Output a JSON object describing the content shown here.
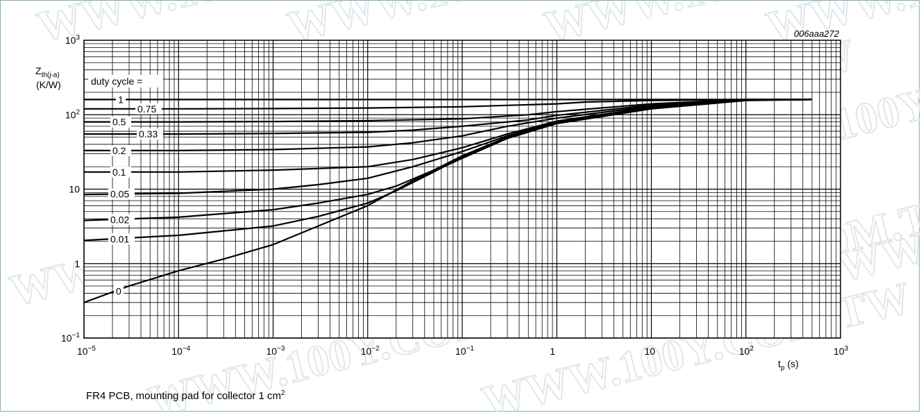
{
  "figure": {
    "id_label": "006aaa272",
    "caption": "FR4 PCB, mounting pad for collector 1 cm",
    "caption_sup": "2",
    "watermark": "WWW.100Y.COM.TW",
    "border_color": "#7fb0b6"
  },
  "chart_data": {
    "type": "line",
    "x_scale": "log",
    "y_scale": "log",
    "xlim": [
      1e-05,
      1000
    ],
    "ylim": [
      0.1,
      1000
    ],
    "grid": true,
    "ylabel": {
      "main": "Z",
      "sub": "th(j-a)",
      "unit": "(K/W)"
    },
    "xlabel": {
      "main": "t",
      "sub": "p",
      "unit": "(s)"
    },
    "x_tick_labels": [
      {
        "base": "10",
        "exp": "−5"
      },
      {
        "base": "10",
        "exp": "−4"
      },
      {
        "base": "10",
        "exp": "−3"
      },
      {
        "base": "10",
        "exp": "−2"
      },
      {
        "base": "10",
        "exp": "−1"
      },
      {
        "base": "1",
        "exp": ""
      },
      {
        "base": "10",
        "exp": ""
      },
      {
        "base": "10",
        "exp": "2"
      },
      {
        "base": "10",
        "exp": "3"
      }
    ],
    "y_tick_labels": [
      {
        "base": "10",
        "exp": "−1"
      },
      {
        "base": "1",
        "exp": ""
      },
      {
        "base": "10",
        "exp": ""
      },
      {
        "base": "10",
        "exp": "2"
      },
      {
        "base": "10",
        "exp": "3"
      }
    ],
    "legend_title": "duty cycle =",
    "series": [
      {
        "name": "1",
        "x": [
          1e-05,
          0.0001,
          0.001,
          0.01,
          0.1,
          1,
          10,
          100,
          500
        ],
        "y": [
          160,
          160,
          160,
          160,
          160,
          160,
          160,
          160,
          160
        ]
      },
      {
        "name": "0.75",
        "x": [
          1e-05,
          0.0001,
          0.001,
          0.01,
          0.1,
          1,
          2,
          10,
          100,
          500
        ],
        "y": [
          120,
          120,
          121,
          123,
          128,
          140,
          148,
          155,
          160,
          160
        ]
      },
      {
        "name": "0.5",
        "x": [
          1e-05,
          0.0001,
          0.001,
          0.01,
          0.1,
          0.5,
          1,
          10,
          100,
          500
        ],
        "y": [
          80,
          80,
          81,
          83,
          88,
          100,
          110,
          140,
          160,
          160
        ]
      },
      {
        "name": "0.33",
        "x": [
          1e-05,
          0.0001,
          0.001,
          0.01,
          0.03,
          0.1,
          0.5,
          1,
          10,
          100,
          500
        ],
        "y": [
          55,
          55,
          56,
          58,
          62,
          70,
          85,
          98,
          135,
          160,
          160
        ]
      },
      {
        "name": "0.2",
        "x": [
          1e-05,
          0.0001,
          0.001,
          0.01,
          0.03,
          0.1,
          0.3,
          1,
          10,
          100,
          500
        ],
        "y": [
          33,
          33,
          34,
          37,
          42,
          52,
          70,
          90,
          130,
          158,
          160
        ]
      },
      {
        "name": "0.1",
        "x": [
          1e-05,
          0.0001,
          0.001,
          0.01,
          0.03,
          0.1,
          0.3,
          1,
          10,
          100,
          500
        ],
        "y": [
          17,
          17,
          18,
          20,
          25,
          36,
          55,
          82,
          126,
          157,
          160
        ]
      },
      {
        "name": "0.05",
        "x": [
          1e-05,
          0.0001,
          0.001,
          0.003,
          0.01,
          0.03,
          0.1,
          0.3,
          1,
          10,
          100,
          500
        ],
        "y": [
          8.5,
          8.8,
          10,
          11.5,
          14,
          20,
          32,
          52,
          80,
          125,
          157,
          160
        ]
      },
      {
        "name": "0.02",
        "x": [
          1e-05,
          0.0001,
          0.001,
          0.003,
          0.01,
          0.02,
          0.05,
          0.1,
          0.3,
          1,
          10,
          100,
          500
        ],
        "y": [
          3.8,
          4.2,
          5.3,
          6.5,
          8.5,
          11,
          18,
          28,
          50,
          78,
          123,
          157,
          160
        ]
      },
      {
        "name": "0.01",
        "x": [
          1e-05,
          0.0001,
          0.001,
          0.003,
          0.01,
          0.02,
          0.05,
          0.1,
          0.3,
          1,
          10,
          100,
          500
        ],
        "y": [
          2.05,
          2.4,
          3.2,
          4.3,
          6.5,
          9.5,
          17,
          27,
          50,
          78,
          122,
          157,
          160
        ]
      },
      {
        "name": "0",
        "x": [
          1e-05,
          3e-05,
          0.0001,
          0.0003,
          0.001,
          0.003,
          0.01,
          0.03,
          0.1,
          0.3,
          1,
          10,
          100,
          500
        ],
        "y": [
          0.3,
          0.5,
          0.8,
          1.15,
          1.8,
          3.2,
          6,
          13,
          26,
          48,
          76,
          120,
          155,
          160
        ]
      }
    ],
    "labels": [
      {
        "text": "1",
        "series": "1"
      },
      {
        "text": "0.75",
        "series": "0.75"
      },
      {
        "text": "0.5",
        "series": "0.5"
      },
      {
        "text": "0.33",
        "series": "0.33"
      },
      {
        "text": "0.2",
        "series": "0.2"
      },
      {
        "text": "0.1",
        "series": "0.1"
      },
      {
        "text": "0.05",
        "series": "0.05"
      },
      {
        "text": "0.02",
        "series": "0.02"
      },
      {
        "text": "0.01",
        "series": "0.01"
      },
      {
        "text": "0",
        "series": "0"
      }
    ]
  }
}
